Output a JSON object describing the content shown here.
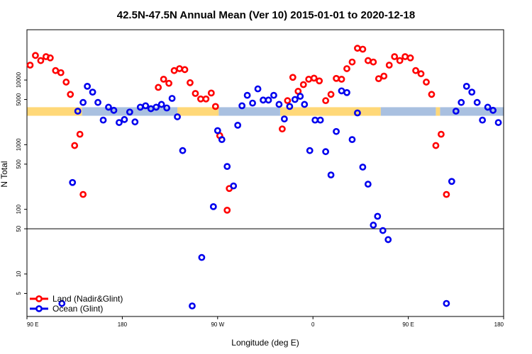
{
  "chart_data": {
    "type": "scatter",
    "title": "42.5N-47.5N Annual Mean (Ver 10)   2015-01-01 to 2020-12-18",
    "xlabel": "Longitude (deg E)",
    "ylabel": "N Total",
    "x_ticks": [
      "90 E",
      "180",
      "90 W",
      "0",
      "90 E",
      "180"
    ],
    "x_tick_values": [
      90,
      180,
      270,
      360,
      450,
      540
    ],
    "xlim": [
      90,
      540
    ],
    "y_scale": "log",
    "ylim": [
      2.2,
      60000
    ],
    "y_ticks": [
      "5",
      "10",
      "50",
      "100",
      "500",
      "1000",
      "5000",
      "10000"
    ],
    "y_tick_values": [
      5,
      10,
      50,
      100,
      500,
      1000,
      5000,
      10000
    ],
    "reference_line": 50,
    "legend_placement": "bottom-left",
    "series": [
      {
        "name": "Land (Nadir&Glint)",
        "color": "#ff0000",
        "points": [
          [
            93,
            17000
          ],
          [
            98,
            24000
          ],
          [
            103,
            20000
          ],
          [
            108,
            23000
          ],
          [
            112,
            22000
          ],
          [
            117,
            14000
          ],
          [
            122,
            13000
          ],
          [
            127,
            9300
          ],
          [
            131,
            6000
          ],
          [
            135,
            970
          ],
          [
            140,
            1450
          ],
          [
            143,
            170
          ],
          [
            214,
            7700
          ],
          [
            219,
            10300
          ],
          [
            224,
            8900
          ],
          [
            229,
            14000
          ],
          [
            234,
            15000
          ],
          [
            239,
            14500
          ],
          [
            244,
            9100
          ],
          [
            249,
            6200
          ],
          [
            254,
            5100
          ],
          [
            259,
            5100
          ],
          [
            264,
            6300
          ],
          [
            268,
            3900
          ],
          [
            272,
            1380
          ],
          [
            279,
            97
          ],
          [
            281,
            210
          ],
          [
            331,
            1750
          ],
          [
            336,
            4800
          ],
          [
            341,
            11000
          ],
          [
            346,
            6700
          ],
          [
            351,
            8500
          ],
          [
            356,
            10300
          ],
          [
            361,
            10700
          ],
          [
            366,
            9700
          ],
          [
            372,
            4800
          ],
          [
            377,
            6000
          ],
          [
            382,
            10600
          ],
          [
            387,
            10300
          ],
          [
            392,
            15000
          ],
          [
            397,
            19000
          ],
          [
            402,
            31000
          ],
          [
            407,
            30000
          ],
          [
            412,
            20000
          ],
          [
            417,
            19000
          ],
          [
            422,
            10500
          ],
          [
            427,
            11500
          ],
          [
            432,
            17000
          ],
          [
            437,
            23000
          ],
          [
            442,
            20000
          ],
          [
            447,
            23000
          ],
          [
            452,
            22000
          ],
          [
            457,
            14000
          ],
          [
            462,
            12500
          ],
          [
            467,
            9300
          ],
          [
            472,
            6000
          ],
          [
            476,
            970
          ],
          [
            481,
            1450
          ],
          [
            486,
            170
          ]
        ]
      },
      {
        "name": "Ocean (Glint)",
        "color": "#0000ee",
        "points": [
          [
            123,
            3.5
          ],
          [
            133,
            260
          ],
          [
            138,
            3300
          ],
          [
            143,
            4500
          ],
          [
            147,
            8000
          ],
          [
            152,
            6500
          ],
          [
            157,
            4500
          ],
          [
            162,
            2400
          ],
          [
            167,
            3800
          ],
          [
            172,
            3400
          ],
          [
            177,
            2200
          ],
          [
            182,
            2450
          ],
          [
            187,
            3200
          ],
          [
            192,
            2250
          ],
          [
            197,
            3800
          ],
          [
            202,
            4000
          ],
          [
            207,
            3600
          ],
          [
            212,
            3800
          ],
          [
            217,
            4200
          ],
          [
            222,
            3700
          ],
          [
            227,
            5200
          ],
          [
            232,
            2700
          ],
          [
            237,
            810
          ],
          [
            246,
            3.2
          ],
          [
            255,
            18
          ],
          [
            266,
            110
          ],
          [
            270,
            1650
          ],
          [
            274,
            1200
          ],
          [
            279,
            460
          ],
          [
            285,
            230
          ],
          [
            289,
            2000
          ],
          [
            293,
            4000
          ],
          [
            298,
            5800
          ],
          [
            303,
            4400
          ],
          [
            308,
            7300
          ],
          [
            313,
            4900
          ],
          [
            318,
            4900
          ],
          [
            323,
            5800
          ],
          [
            328,
            4200
          ],
          [
            333,
            2500
          ],
          [
            338,
            3900
          ],
          [
            343,
            5000
          ],
          [
            348,
            5600
          ],
          [
            352,
            4200
          ],
          [
            357,
            810
          ],
          [
            362,
            2400
          ],
          [
            367,
            2400
          ],
          [
            372,
            780
          ],
          [
            377,
            340
          ],
          [
            382,
            1600
          ],
          [
            387,
            6800
          ],
          [
            392,
            6400
          ],
          [
            397,
            1200
          ],
          [
            402,
            3100
          ],
          [
            407,
            450
          ],
          [
            412,
            245
          ],
          [
            417,
            57
          ],
          [
            421,
            78
          ],
          [
            426,
            47
          ],
          [
            431,
            34
          ],
          [
            486,
            3.5
          ],
          [
            491,
            270
          ],
          [
            495,
            3300
          ],
          [
            500,
            4500
          ],
          [
            505,
            8000
          ],
          [
            510,
            6500
          ],
          [
            515,
            4500
          ],
          [
            520,
            2400
          ],
          [
            525,
            3800
          ],
          [
            530,
            3400
          ],
          [
            535,
            2200
          ]
        ]
      }
    ],
    "surface_band": {
      "y_low": 2800,
      "y_high": 3800,
      "land_color": "#ffd878",
      "ocean_color": "#a9c0e0",
      "land_segments": [
        [
          90,
          142
        ],
        [
          232,
          271
        ],
        [
          329,
          424
        ],
        [
          476,
          480
        ]
      ],
      "ocean_segments": [
        [
          142,
          232
        ],
        [
          271,
          329
        ],
        [
          424,
          476
        ],
        [
          480,
          540
        ]
      ]
    }
  }
}
